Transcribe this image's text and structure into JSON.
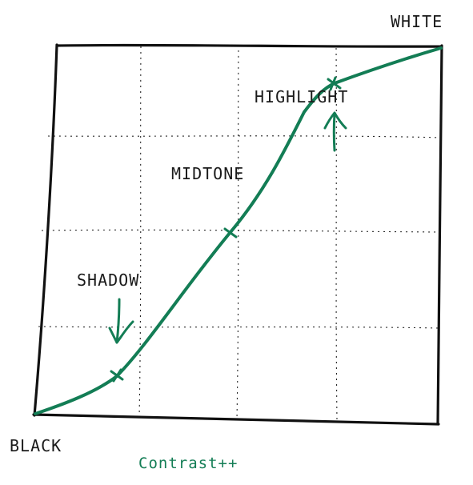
{
  "labels": {
    "white": "WHITE",
    "black": "BLACK",
    "highlight": "HIGHLIGHT",
    "midtone": "MIDTONE",
    "shadow": "SHADOW"
  },
  "caption": "Contrast++",
  "colors": {
    "curve": "#137d55",
    "caption": "#137d55",
    "ink": "#111111"
  }
}
